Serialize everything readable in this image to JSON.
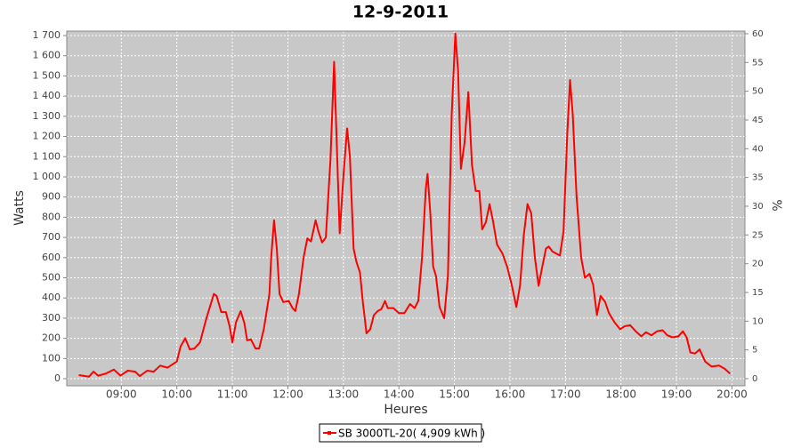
{
  "chart_data": {
    "type": "line",
    "title": "12-9-2011",
    "x_label": "Heures",
    "y_label": "Watts",
    "y2_label": "%",
    "x": [
      "08:14",
      "08:25",
      "08:30",
      "08:35",
      "08:43",
      "08:52",
      "08:59",
      "09:07",
      "09:15",
      "09:20",
      "09:28",
      "09:35",
      "09:42",
      "09:50",
      "10:00",
      "10:04",
      "10:09",
      "10:14",
      "10:19",
      "10:25",
      "10:32",
      "10:40",
      "10:43",
      "10:48",
      "10:53",
      "10:57",
      "11:00",
      "11:04",
      "11:09",
      "11:13",
      "11:16",
      "11:20",
      "11:25",
      "11:29",
      "11:34",
      "11:40",
      "11:42",
      "11:45",
      "11:48",
      "11:51",
      "11:55",
      "12:01",
      "12:05",
      "12:08",
      "12:12",
      "12:17",
      "12:21",
      "12:25",
      "12:30",
      "12:33",
      "12:37",
      "12:41",
      "12:46",
      "12:50",
      "12:54",
      "12:56",
      "13:00",
      "13:04",
      "13:07",
      "13:11",
      "13:14",
      "13:18",
      "13:21",
      "13:25",
      "13:29",
      "13:33",
      "13:37",
      "13:41",
      "13:45",
      "13:48",
      "13:54",
      "14:00",
      "14:06",
      "14:12",
      "14:17",
      "14:21",
      "14:25",
      "14:29",
      "14:31",
      "14:34",
      "14:37",
      "14:40",
      "14:44",
      "14:49",
      "14:53",
      "14:57",
      "15:01",
      "15:04",
      "15:07",
      "15:11",
      "15:15",
      "15:19",
      "15:23",
      "15:27",
      "15:30",
      "15:34",
      "15:38",
      "15:42",
      "15:46",
      "15:52",
      "15:57",
      "16:02",
      "16:07",
      "16:11",
      "16:15",
      "16:19",
      "16:23",
      "16:27",
      "16:31",
      "16:35",
      "16:39",
      "16:42",
      "16:46",
      "16:50",
      "16:54",
      "16:58",
      "17:02",
      "17:05",
      "17:08",
      "17:12",
      "17:17",
      "17:21",
      "17:26",
      "17:30",
      "17:34",
      "17:38",
      "17:43",
      "17:47",
      "17:53",
      "17:59",
      "18:04",
      "18:10",
      "18:16",
      "18:22",
      "18:27",
      "18:33",
      "18:39",
      "18:45",
      "18:50",
      "18:56",
      "19:02",
      "19:07",
      "19:11",
      "19:15",
      "19:20",
      "19:25",
      "19:31",
      "19:38",
      "19:46",
      "19:52",
      "19:58"
    ],
    "series": [
      {
        "name": "SB 3000TL-20( 4,909 kWh )",
        "color": "#ff0000",
        "values": [
          18,
          10,
          35,
          15,
          25,
          45,
          15,
          40,
          35,
          13,
          40,
          35,
          65,
          55,
          85,
          160,
          200,
          145,
          150,
          180,
          300,
          420,
          410,
          330,
          330,
          260,
          180,
          280,
          335,
          275,
          190,
          195,
          150,
          150,
          245,
          420,
          600,
          785,
          645,
          420,
          380,
          385,
          350,
          335,
          420,
          600,
          695,
          680,
          785,
          730,
          675,
          700,
          1085,
          1570,
          1000,
          720,
          1000,
          1240,
          1105,
          645,
          580,
          525,
          380,
          225,
          245,
          315,
          335,
          345,
          385,
          350,
          350,
          325,
          325,
          370,
          350,
          385,
          600,
          940,
          1015,
          820,
          555,
          510,
          355,
          300,
          510,
          1305,
          1710,
          1525,
          1040,
          1170,
          1420,
          1060,
          930,
          930,
          740,
          775,
          865,
          775,
          665,
          620,
          555,
          465,
          355,
          465,
          710,
          865,
          820,
          600,
          460,
          555,
          645,
          655,
          630,
          620,
          610,
          730,
          1215,
          1480,
          1305,
          905,
          600,
          500,
          520,
          465,
          315,
          410,
          380,
          325,
          280,
          245,
          260,
          265,
          235,
          210,
          230,
          215,
          235,
          240,
          215,
          205,
          210,
          235,
          205,
          130,
          125,
          145,
          85,
          60,
          65,
          50,
          25
        ]
      }
    ],
    "xlim": [
      "08:01",
      "20:14"
    ],
    "xticks": [
      "09:00",
      "10:00",
      "11:00",
      "12:00",
      "13:00",
      "14:00",
      "15:00",
      "16:00",
      "17:00",
      "18:00",
      "19:00",
      "20:00"
    ],
    "ylim": [
      -35,
      1722
    ],
    "yticks": [
      0,
      100,
      200,
      300,
      400,
      500,
      600,
      700,
      800,
      900,
      {
        "value": 1000,
        "label": "1 000"
      },
      {
        "value": 1100,
        "label": "1 100"
      },
      {
        "value": 1200,
        "label": "1 200"
      },
      {
        "value": 1300,
        "label": "1 300"
      },
      {
        "value": 1400,
        "label": "1 400"
      },
      {
        "value": 1500,
        "label": "1 500"
      },
      {
        "value": 1600,
        "label": "1 600"
      },
      {
        "value": 1700,
        "label": "1 700"
      }
    ],
    "y2lim": [
      -1.24,
      60.46
    ],
    "y2ticks": [
      0,
      5,
      10,
      15,
      20,
      25,
      30,
      35,
      40,
      45,
      50,
      55,
      60
    ],
    "grid": true,
    "legend": "bottom"
  }
}
